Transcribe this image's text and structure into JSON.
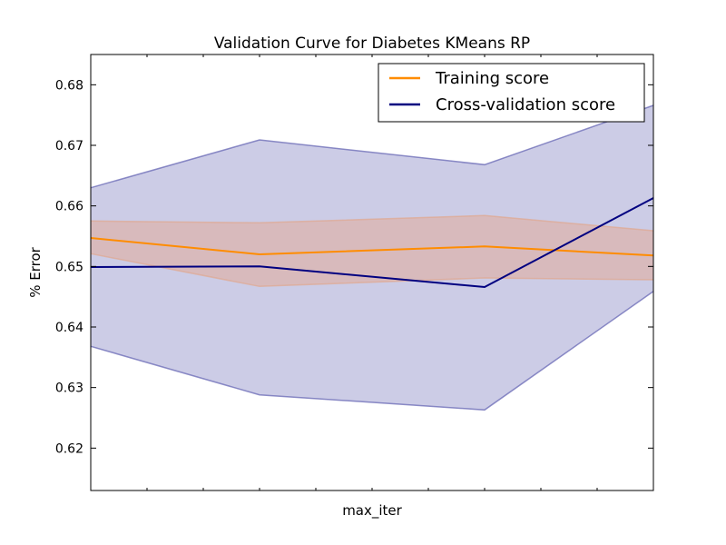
{
  "chart_data": {
    "type": "line",
    "title": "Validation Curve for Diabetes KMeans RP",
    "xlabel": "max_iter",
    "ylabel": "% Error",
    "xlim": [
      0,
      1
    ],
    "ylim": [
      0.613,
      0.685
    ],
    "yticks": [
      0.62,
      0.63,
      0.64,
      0.65,
      0.66,
      0.67,
      0.68
    ],
    "ytick_labels": [
      "0.62",
      "0.63",
      "0.64",
      "0.65",
      "0.66",
      "0.67",
      "0.68"
    ],
    "xticks_minor": [
      0.1,
      0.2,
      0.3,
      0.4,
      0.5,
      0.6,
      0.7,
      0.8,
      0.9
    ],
    "x": [
      0.0,
      0.3,
      0.7,
      1.0
    ],
    "legend_position": "top-right",
    "grid": false,
    "series": [
      {
        "name": "Training score",
        "color": "#ff8c00",
        "values": [
          0.6547,
          0.652,
          0.6533,
          0.6518
        ],
        "upper": [
          0.6575,
          0.6572,
          0.6584,
          0.6559
        ],
        "lower": [
          0.6521,
          0.6467,
          0.6481,
          0.6478
        ]
      },
      {
        "name": "Cross-validation score",
        "color": "#000080",
        "values": [
          0.6499,
          0.65,
          0.6466,
          0.6613
        ],
        "upper": [
          0.663,
          0.6709,
          0.6668,
          0.6766
        ],
        "lower": [
          0.6368,
          0.6288,
          0.6263,
          0.6459
        ]
      }
    ]
  }
}
